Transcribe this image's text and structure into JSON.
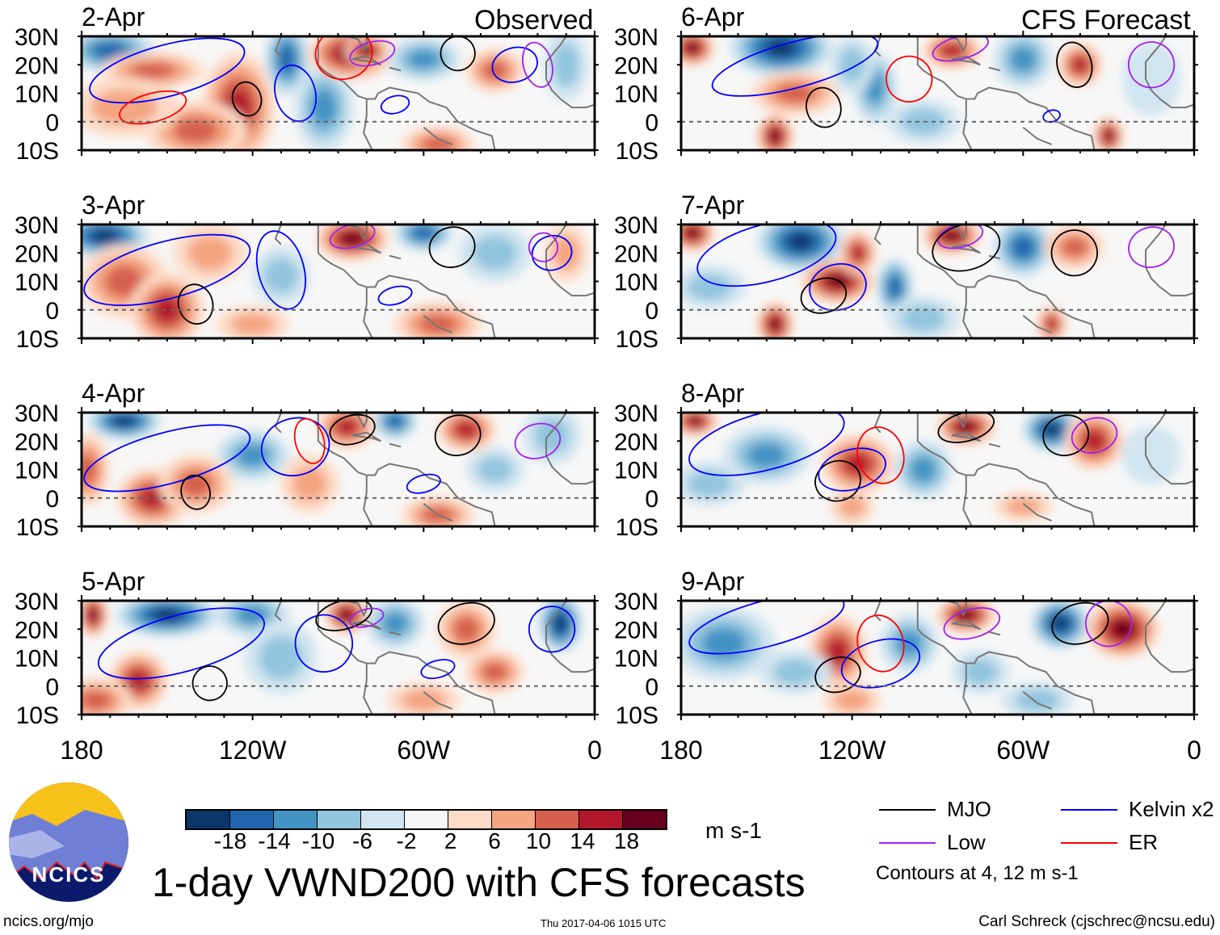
{
  "header": {
    "observed_label": "Observed",
    "forecast_label": "CFS Forecast"
  },
  "panels": [
    {
      "date": "2-Apr",
      "group": "observed"
    },
    {
      "date": "3-Apr",
      "group": "observed"
    },
    {
      "date": "4-Apr",
      "group": "observed"
    },
    {
      "date": "5-Apr",
      "group": "observed"
    },
    {
      "date": "6-Apr",
      "group": "forecast"
    },
    {
      "date": "7-Apr",
      "group": "forecast"
    },
    {
      "date": "8-Apr",
      "group": "forecast"
    },
    {
      "date": "9-Apr",
      "group": "forecast"
    }
  ],
  "chart_data": {
    "type": "heatmap",
    "title": "1-day VWND200 with CFS forecasts",
    "variable": "200 hPa meridional wind",
    "units": "m s-1",
    "lat_ticks": [
      "30N",
      "20N",
      "10N",
      "0",
      "10S"
    ],
    "lon_ticks": [
      "180",
      "120W",
      "60W",
      "0"
    ],
    "lat_range": [
      -10,
      30
    ],
    "lon_range": [
      -180,
      0
    ],
    "colorbar": {
      "ticks": [
        "-18",
        "-14",
        "-10",
        "-6",
        "-2",
        "2",
        "6",
        "10",
        "14",
        "18"
      ],
      "colors": [
        "#0a3668",
        "#2166ac",
        "#4393c3",
        "#92c5de",
        "#d1e5f0",
        "#f7f7f7",
        "#fddbc7",
        "#f4a582",
        "#d6604d",
        "#b2182b",
        "#67001f"
      ]
    },
    "legend": [
      {
        "name": "MJO",
        "color": "#000000"
      },
      {
        "name": "Kelvin x2",
        "color": "#0000ff"
      },
      {
        "name": "Low",
        "color": "#a020f0"
      },
      {
        "name": "ER",
        "color": "#ff0000"
      }
    ],
    "contour_note": "Contours at 4, 12 m s-1"
  },
  "footer": {
    "logo_text": "NCICS",
    "url": "ncics.org/mjo",
    "timestamp": "Thu 2017-04-06 1015 UTC",
    "author": "Carl Schreck (cjschrec@ncsu.edu)"
  }
}
